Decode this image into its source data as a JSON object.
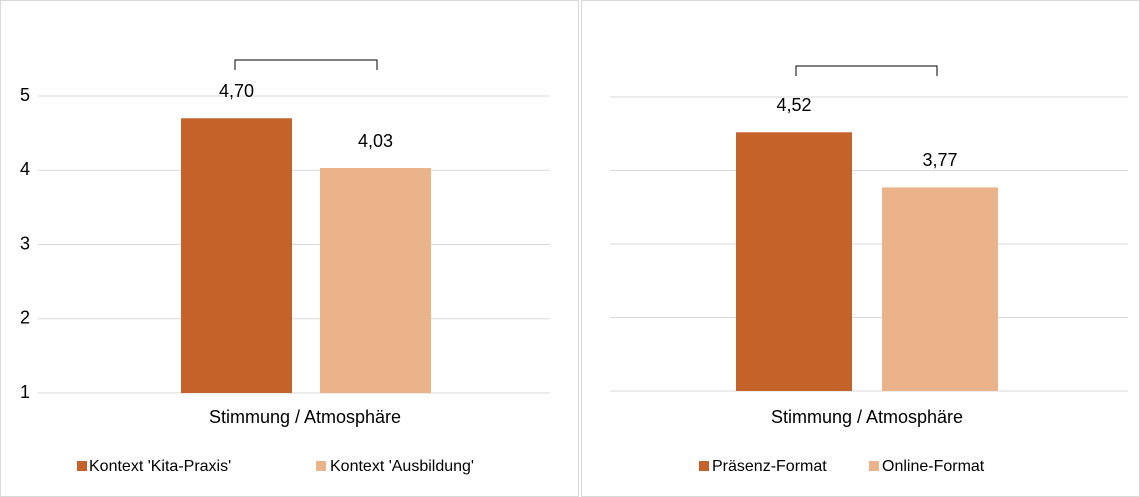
{
  "chart_data": [
    {
      "type": "bar",
      "categories": [
        "Stimmung / Atmosphäre"
      ],
      "series": [
        {
          "name": "Kontext 'Kita-Praxis'",
          "color": "#c5622a",
          "values": [
            4.7
          ],
          "value_labels": [
            "4,70"
          ]
        },
        {
          "name": "Kontext 'Ausbildung'",
          "color": "#ebb389",
          "values": [
            4.03
          ],
          "value_labels": [
            "4,03"
          ]
        }
      ],
      "ylim": [
        1,
        5
      ],
      "yticks": [
        1,
        2,
        3,
        4,
        5
      ],
      "grid": true,
      "tick_labels": true,
      "legend": "bottom"
    },
    {
      "type": "bar",
      "categories": [
        "Stimmung / Atmosphäre"
      ],
      "series": [
        {
          "name": "Präsenz-Format",
          "color": "#c5622a",
          "values": [
            4.52
          ],
          "value_labels": [
            "4,52"
          ]
        },
        {
          "name": "Online-Format",
          "color": "#ebb389",
          "values": [
            3.77
          ],
          "value_labels": [
            "3,77"
          ]
        }
      ],
      "ylim": [
        1,
        5
      ],
      "yticks": [
        1,
        2,
        3,
        4,
        5
      ],
      "grid": true,
      "tick_labels": false,
      "legend": "bottom"
    }
  ]
}
